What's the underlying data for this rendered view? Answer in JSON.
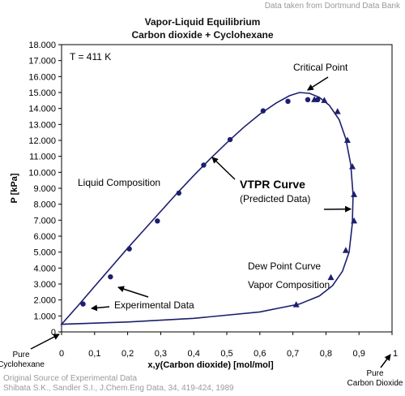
{
  "header": {
    "source_note": "Data taken from Dortmund Data Bank",
    "title": "Vapor-Liquid Equilibrium",
    "subtitle": "Carbon dioxide + Cyclohexane"
  },
  "footer": {
    "line1": "Original Source of Experimental Data",
    "line2": "Shibata S.K., Sandler S.I., J.Chem.Eng Data, 34, 419-424, 1989"
  },
  "chart_data": {
    "type": "scatter",
    "title": "Vapor-Liquid Equilibrium",
    "subtitle": "Carbon dioxide + Cyclohexane",
    "xlabel": "x,y(Carbon dioxide) [mol/mol]",
    "ylabel": "P [kPa]",
    "xlim": [
      0,
      1
    ],
    "ylim": [
      0,
      18000
    ],
    "x_ticks": [
      "0",
      "0,1",
      "0,2",
      "0,3",
      "0,4",
      "0,5",
      "0,6",
      "0,7",
      "0,8",
      "0,9",
      "1"
    ],
    "y_ticks": [
      "0",
      "1.000",
      "2.000",
      "3.000",
      "4.000",
      "5.000",
      "6.000",
      "7.000",
      "8.000",
      "9.000",
      "10.000",
      "11.000",
      "12.000",
      "13.000",
      "14.000",
      "15.000",
      "16.000",
      "17.000",
      "18.000"
    ],
    "x_end_labels": {
      "left": [
        "Pure",
        "Cyclohexane"
      ],
      "right": [
        "Pure",
        "Carbon Dioxide"
      ]
    },
    "grid": false,
    "temperature_label": "T = 411 K",
    "series": [
      {
        "name": "Liquid Composition",
        "marker": "circle",
        "points": [
          [
            0.065,
            1750
          ],
          [
            0.148,
            3450
          ],
          [
            0.205,
            5200
          ],
          [
            0.29,
            6950
          ],
          [
            0.355,
            8700
          ],
          [
            0.43,
            10450
          ],
          [
            0.51,
            12050
          ],
          [
            0.61,
            13850
          ],
          [
            0.685,
            14450
          ],
          [
            0.745,
            14550
          ],
          [
            0.775,
            14550
          ]
        ]
      },
      {
        "name": "Vapor Composition",
        "marker": "triangle",
        "points": [
          [
            0.71,
            1700
          ],
          [
            0.815,
            3400
          ],
          [
            0.86,
            5100
          ],
          [
            0.885,
            6950
          ],
          [
            0.885,
            8600
          ],
          [
            0.88,
            10350
          ],
          [
            0.865,
            12000
          ],
          [
            0.835,
            13800
          ],
          [
            0.795,
            14500
          ],
          [
            0.765,
            14550
          ]
        ]
      },
      {
        "name": "VTPR Curve",
        "marker": "line",
        "points": [
          [
            0.0,
            480
          ],
          [
            0.05,
            1650
          ],
          [
            0.1,
            2850
          ],
          [
            0.15,
            4050
          ],
          [
            0.2,
            5250
          ],
          [
            0.25,
            6400
          ],
          [
            0.3,
            7550
          ],
          [
            0.35,
            8700
          ],
          [
            0.4,
            9800
          ],
          [
            0.45,
            10850
          ],
          [
            0.5,
            11850
          ],
          [
            0.55,
            12800
          ],
          [
            0.6,
            13650
          ],
          [
            0.65,
            14350
          ],
          [
            0.69,
            14800
          ],
          [
            0.72,
            15000
          ],
          [
            0.75,
            14950
          ],
          [
            0.78,
            14700
          ],
          [
            0.81,
            14200
          ],
          [
            0.84,
            13300
          ],
          [
            0.86,
            12100
          ],
          [
            0.875,
            10500
          ],
          [
            0.882,
            8600
          ],
          [
            0.88,
            6800
          ],
          [
            0.87,
            5000
          ],
          [
            0.85,
            3800
          ],
          [
            0.82,
            2900
          ],
          [
            0.78,
            2250
          ],
          [
            0.72,
            1750
          ],
          [
            0.6,
            1250
          ],
          [
            0.4,
            850
          ],
          [
            0.2,
            620
          ],
          [
            0.0,
            480
          ]
        ]
      }
    ],
    "annotations": [
      {
        "text": "Critical Point",
        "arrow_to": [
          0.725,
          15000
        ]
      },
      {
        "text": "Liquid Composition"
      },
      {
        "text": "VTPR Curve"
      },
      {
        "text": "(Predicted Data)",
        "arrow_to": [
          0.88,
          7800
        ]
      },
      {
        "text": "Dew Point Curve"
      },
      {
        "text": "Vapor Composition"
      },
      {
        "text": "Experimental Data",
        "arrow_to": [
          0.075,
          1750
        ]
      }
    ]
  }
}
